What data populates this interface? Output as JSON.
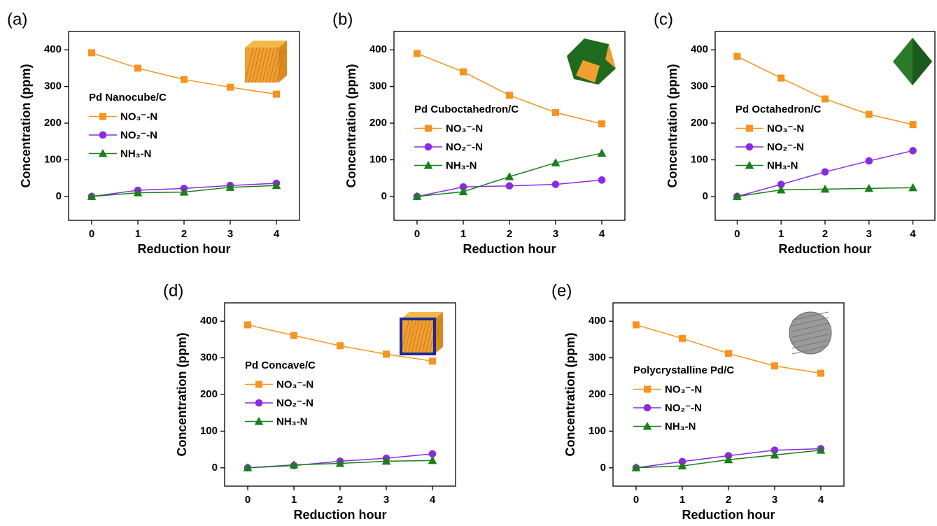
{
  "chart_data": [
    {
      "type": "line",
      "label": "(a)",
      "legend_title": "Pd Nanocube/C",
      "xlabel": "Reduction hour",
      "ylabel": "Concentration (ppm)",
      "x": [
        0,
        1,
        2,
        3,
        4
      ],
      "xlim": [
        -0.5,
        4.5
      ],
      "ylim": [
        -65,
        450
      ],
      "xticks": [
        0,
        1,
        2,
        3,
        4
      ],
      "yticks": [
        0,
        100,
        200,
        300,
        400
      ],
      "series": [
        {
          "name": "NO₃⁻-N",
          "color": "#f7931e",
          "values": [
            392,
            350,
            319,
            298,
            279
          ]
        },
        {
          "name": "NO₂⁻-N",
          "color": "#8a2be2",
          "values": [
            0,
            17,
            22,
            30,
            36
          ]
        },
        {
          "name": "NH₃-N",
          "color": "#1a7f1a",
          "values": [
            0,
            10,
            12,
            25,
            30
          ]
        }
      ]
    },
    {
      "type": "line",
      "label": "(b)",
      "legend_title": "Pd Cuboctahedron/C",
      "xlabel": "Reduction hour",
      "ylabel": "Concentration (ppm)",
      "x": [
        0,
        1,
        2,
        3,
        4
      ],
      "xlim": [
        -0.5,
        4.5
      ],
      "ylim": [
        -65,
        450
      ],
      "xticks": [
        0,
        1,
        2,
        3,
        4
      ],
      "yticks": [
        0,
        100,
        200,
        300,
        400
      ],
      "series": [
        {
          "name": "NO₃⁻-N",
          "color": "#f7931e",
          "values": [
            390,
            340,
            276,
            229,
            198
          ]
        },
        {
          "name": "NO₂⁻-N",
          "color": "#8a2be2",
          "values": [
            0,
            26,
            29,
            33,
            45
          ]
        },
        {
          "name": "NH₃-N",
          "color": "#1a7f1a",
          "values": [
            0,
            13,
            54,
            92,
            118
          ]
        }
      ]
    },
    {
      "type": "line",
      "label": "(c)",
      "legend_title": "Pd Octahedron/C",
      "xlabel": "Reduction hour",
      "ylabel": "Concentration (ppm)",
      "x": [
        0,
        1,
        2,
        3,
        4
      ],
      "xlim": [
        -0.5,
        4.5
      ],
      "ylim": [
        -65,
        450
      ],
      "xticks": [
        0,
        1,
        2,
        3,
        4
      ],
      "yticks": [
        0,
        100,
        200,
        300,
        400
      ],
      "series": [
        {
          "name": "NO₃⁻-N",
          "color": "#f7931e",
          "values": [
            382,
            323,
            266,
            224,
            196
          ]
        },
        {
          "name": "NO₂⁻-N",
          "color": "#8a2be2",
          "values": [
            0,
            33,
            67,
            97,
            125
          ]
        },
        {
          "name": "NH₃-N",
          "color": "#1a7f1a",
          "values": [
            0,
            18,
            20,
            22,
            24
          ]
        }
      ]
    },
    {
      "type": "line",
      "label": "(d)",
      "legend_title": "Pd Concave/C",
      "xlabel": "Reduction hour",
      "ylabel": "Concentration (ppm)",
      "x": [
        0,
        1,
        2,
        3,
        4
      ],
      "xlim": [
        -0.5,
        4.5
      ],
      "ylim": [
        -50,
        450
      ],
      "xticks": [
        0,
        1,
        2,
        3,
        4
      ],
      "yticks": [
        0,
        100,
        200,
        300,
        400
      ],
      "series": [
        {
          "name": "NO₃⁻-N",
          "color": "#f7931e",
          "values": [
            390,
            361,
            333,
            310,
            291
          ]
        },
        {
          "name": "NO₂⁻-N",
          "color": "#8a2be2",
          "values": [
            0,
            6,
            18,
            26,
            38
          ]
        },
        {
          "name": "NH₃-N",
          "color": "#1a7f1a",
          "values": [
            0,
            8,
            12,
            18,
            20
          ]
        }
      ]
    },
    {
      "type": "line",
      "label": "(e)",
      "legend_title": "Polycrystalline Pd/C",
      "xlabel": "Reduction hour",
      "ylabel": "Concentration (ppm)",
      "x": [
        0,
        1,
        2,
        3,
        4
      ],
      "xlim": [
        -0.5,
        4.5
      ],
      "ylim": [
        -50,
        450
      ],
      "xticks": [
        0,
        1,
        2,
        3,
        4
      ],
      "yticks": [
        0,
        100,
        200,
        300,
        400
      ],
      "series": [
        {
          "name": "NO₃⁻-N",
          "color": "#f7931e",
          "values": [
            390,
            353,
            312,
            278,
            258
          ]
        },
        {
          "name": "NO₂⁻-N",
          "color": "#8a2be2",
          "values": [
            0,
            17,
            33,
            48,
            52
          ]
        },
        {
          "name": "NH₃-N",
          "color": "#1a7f1a",
          "values": [
            0,
            5,
            22,
            35,
            48
          ]
        }
      ]
    }
  ]
}
